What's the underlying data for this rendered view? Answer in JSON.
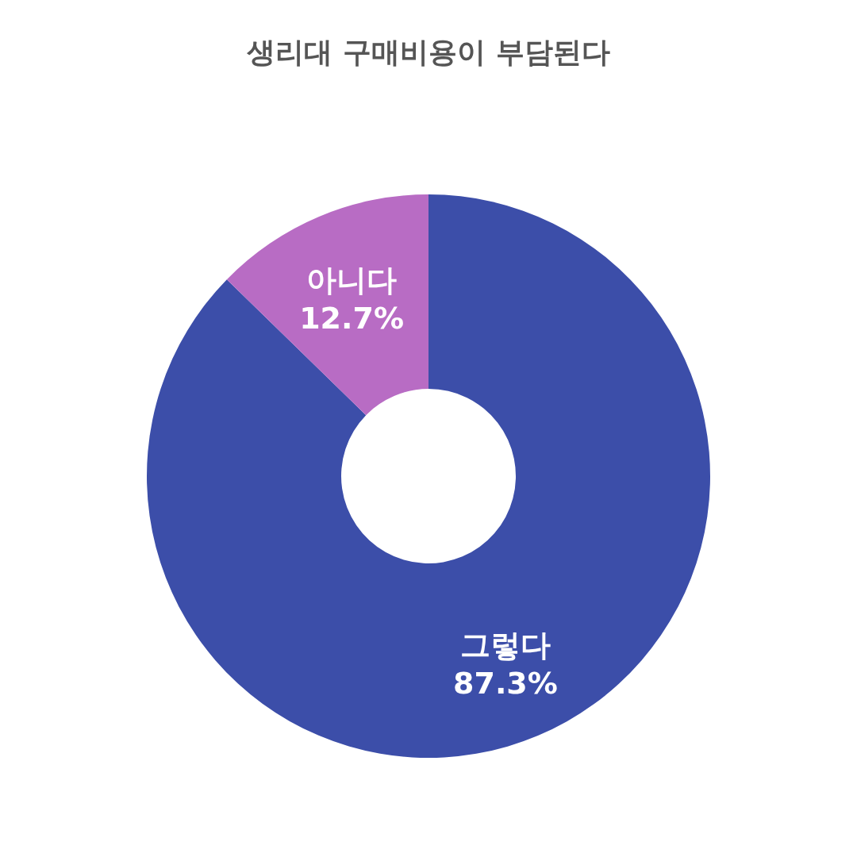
{
  "chart_data": {
    "type": "donut",
    "title": "생리대 구매비용이 부담된다",
    "categories": [
      "그렇다",
      "아니다"
    ],
    "values": [
      87.3,
      12.7
    ],
    "colors": [
      "#3c4ea9",
      "#b86cc4"
    ],
    "value_labels": [
      "87.3%",
      "12.7%"
    ]
  }
}
